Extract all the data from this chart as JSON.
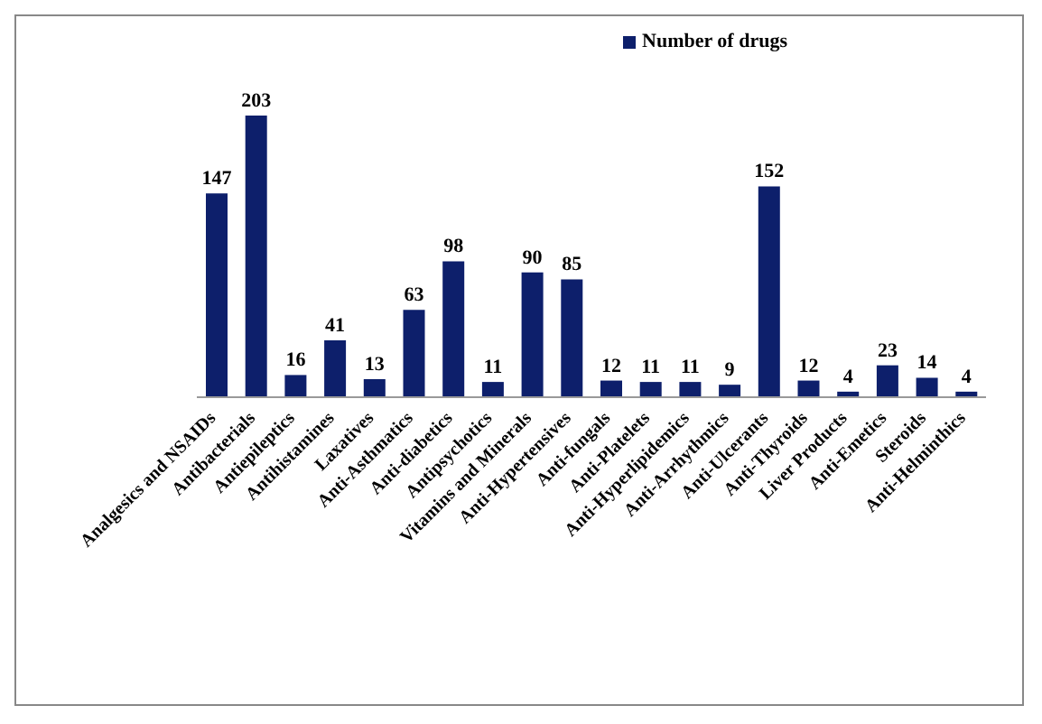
{
  "chart_data": {
    "type": "bar",
    "categories": [
      "Analgesics and NSAIDs",
      "Antibacterials",
      "Antiepileptics",
      "Antihistamines",
      "Laxatives",
      "Anti-Asthmatics",
      "Anti-diabetics",
      "Antipsychotics",
      "Vitamins and Minerals",
      "Anti-Hypertensives",
      "Anti-fungals",
      "Anti-Platelets",
      "Anti-Hyperlipidemics",
      "Anti-Arrhythmics",
      "Anti-Ulcerants",
      "Anti-Thyroids",
      "Liver Products",
      "Anti-Emetics",
      "Steroids",
      "Anti-Helminthics"
    ],
    "series": [
      {
        "name": "Number of drugs",
        "color": "#0d1f6b",
        "values": [
          147,
          203,
          16,
          41,
          13,
          63,
          98,
          11,
          90,
          85,
          12,
          11,
          11,
          9,
          152,
          12,
          4,
          23,
          14,
          4
        ]
      }
    ],
    "data_labels": true,
    "legend": "top right",
    "grid": false
  }
}
